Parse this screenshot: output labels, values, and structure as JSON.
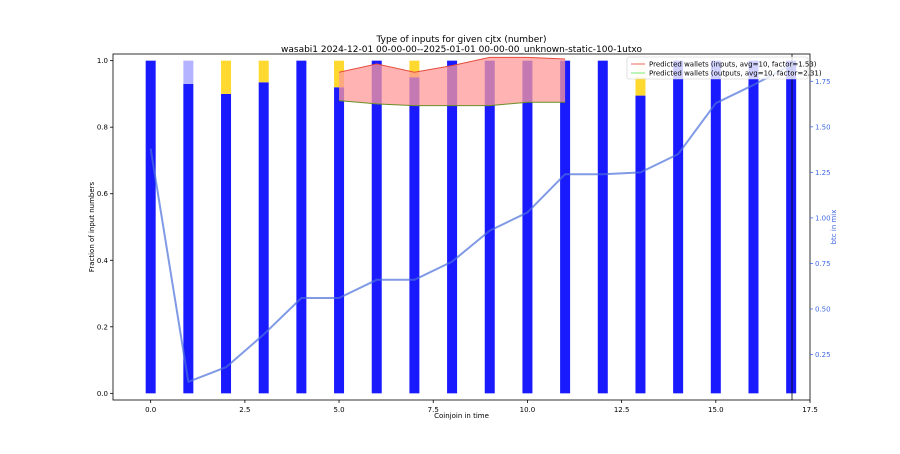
{
  "chart_data": {
    "type": "bar",
    "title": "Type of inputs for given cjtx (number)",
    "subtitle": "wasabi1 2024-12-01 00-00-00--2025-01-01 00-00-00_unknown-static-100-1utxo",
    "xlabel": "Coinjoin in time",
    "ylabel": "Fraction of input numbers",
    "y2label": "btc in mix",
    "xlim": [
      -1.0,
      17.5
    ],
    "ylim": [
      -0.02,
      1.02
    ],
    "y2lim": [
      0.0,
      1.9
    ],
    "xticks": [
      "0.0",
      "2.5",
      "5.0",
      "7.5",
      "10.0",
      "12.5",
      "15.0",
      "17.5"
    ],
    "yticks": [
      "0.0",
      "0.2",
      "0.4",
      "0.6",
      "0.8",
      "1.0"
    ],
    "y2ticks": [
      "0.25",
      "0.50",
      "0.75",
      "1.00",
      "1.25",
      "1.50",
      "1.75"
    ],
    "x": [
      0,
      1,
      2,
      3,
      4,
      5,
      6,
      7,
      8,
      9,
      10,
      11,
      12,
      13,
      14,
      15,
      16,
      17
    ],
    "series": [
      {
        "color": "#1a1aff",
        "values": [
          1.0,
          0.93,
          0.9,
          0.935,
          1.0,
          0.92,
          1.0,
          0.95,
          1.0,
          1.0,
          1.0,
          1.0,
          1.0,
          0.895,
          1.0,
          1.0,
          1.0,
          1.0
        ]
      },
      {
        "color": "#b3b3ff",
        "values": [
          0,
          0.07,
          0,
          0,
          0,
          0,
          0,
          0,
          0,
          0,
          0,
          0,
          0,
          0,
          0,
          0,
          0,
          0
        ]
      },
      {
        "color": "#ffd92f",
        "values": [
          0,
          0,
          0.1,
          0.065,
          0,
          0.08,
          0,
          0.05,
          0,
          0,
          0,
          0,
          0,
          0.055,
          0,
          0,
          0,
          0
        ]
      },
      {
        "color": "#fff5cc",
        "values": [
          0,
          0,
          0,
          0,
          0,
          0,
          0,
          0,
          0,
          0,
          0,
          0,
          0,
          0.05,
          0,
          0,
          0,
          0
        ]
      }
    ],
    "btc_line": {
      "color": "#4a6fdc",
      "x": [
        0,
        1,
        2,
        3,
        4,
        5,
        6,
        7,
        8,
        9,
        10,
        11,
        12,
        13,
        14,
        15,
        16,
        17
      ],
      "values": [
        1.38,
        0.1,
        0.18,
        0.36,
        0.56,
        0.56,
        0.66,
        0.66,
        0.76,
        0.93,
        1.03,
        1.24,
        1.24,
        1.25,
        1.35,
        1.63,
        1.73,
        1.84
      ]
    },
    "predicted": {
      "x": [
        5,
        6,
        7,
        8,
        9,
        10,
        11
      ],
      "inputs": [
        0.965,
        0.99,
        0.965,
        0.985,
        1.01,
        1.01,
        1.005
      ],
      "outputs": [
        0.88,
        0.87,
        0.865,
        0.865,
        0.865,
        0.875,
        0.875
      ],
      "fill_color": "#ff9999",
      "inputs_color": "#e74c3c",
      "outputs_color": "#6b8e23"
    },
    "legend": {
      "placement": "top-right",
      "entries": [
        {
          "label": "Predicted wallets (inputs, avg=10, factor=1.53)",
          "color": "#f08080"
        },
        {
          "label": "Predicted wallets (outputs, avg=10, factor=2.31)",
          "color": "#90ee90"
        }
      ]
    },
    "grid": false
  }
}
